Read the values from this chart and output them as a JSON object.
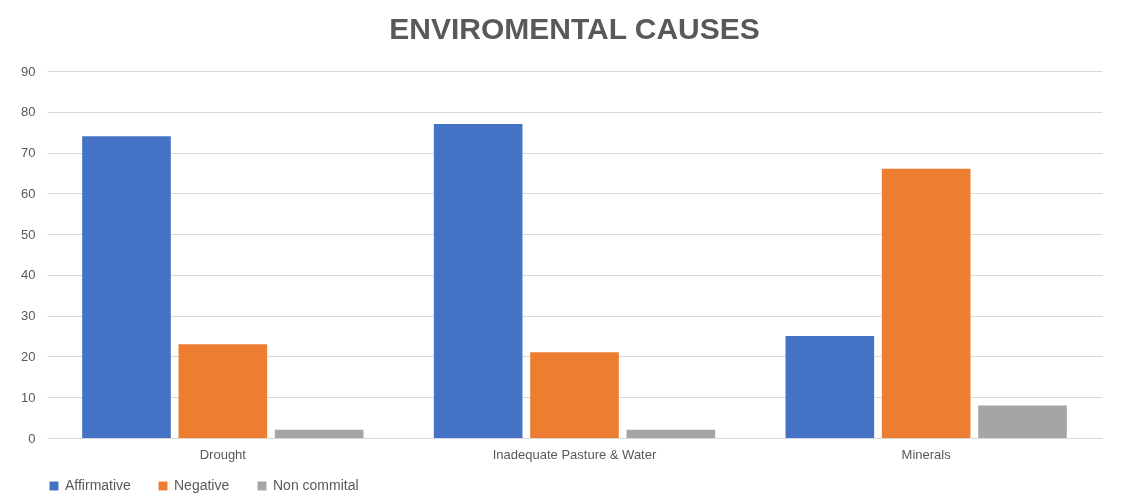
{
  "chart_data": {
    "type": "bar",
    "title": "ENVIROMENTAL CAUSES",
    "categories": [
      "Drought",
      "Inadequate Pasture & Water",
      "Minerals"
    ],
    "series": [
      {
        "name": "Affirmative",
        "color": "#4472c4",
        "values": [
          74,
          77,
          25
        ]
      },
      {
        "name": "Negative",
        "color": "#ed7d31",
        "values": [
          23,
          21,
          66
        ]
      },
      {
        "name": "Non commital",
        "color": "#a5a5a5",
        "values": [
          2,
          2,
          8
        ]
      }
    ],
    "ylim": [
      0,
      90
    ],
    "yticks": [
      0,
      10,
      20,
      30,
      40,
      50,
      60,
      70,
      80,
      90
    ],
    "grid": "y",
    "legend": "bottom"
  }
}
